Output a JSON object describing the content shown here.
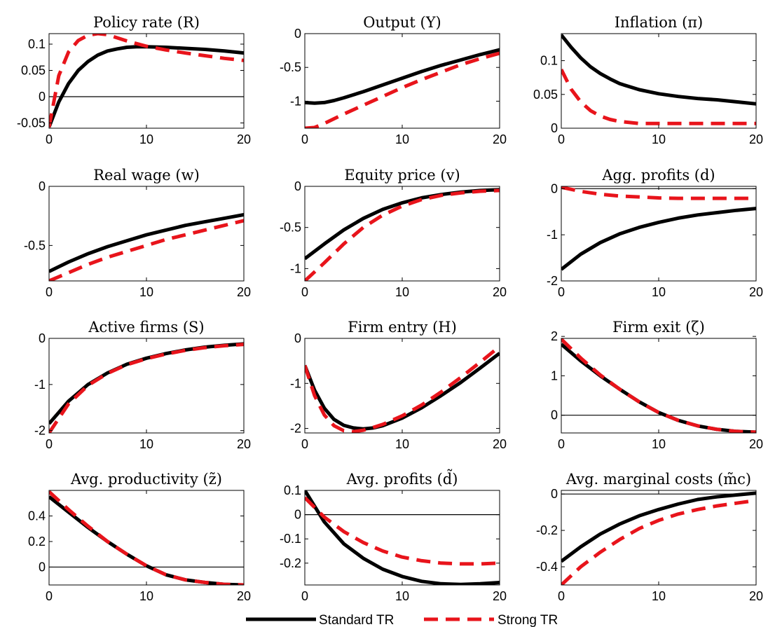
{
  "legend": {
    "standard_label": "Standard TR",
    "strong_label": "Strong TR",
    "standard_color": "#000000",
    "strong_color": "#e8141b"
  },
  "chart_data": [
    {
      "type": "line",
      "title": "Policy rate (R)",
      "xlim": [
        0,
        20
      ],
      "ylim": [
        -0.06,
        0.12
      ],
      "xticks": [
        {
          "v": 0,
          "label": "0"
        },
        {
          "v": 10,
          "label": "10"
        },
        {
          "v": 20,
          "label": "20"
        }
      ],
      "yticks": [
        {
          "v": -0.05,
          "label": "-0.05"
        },
        {
          "v": 0,
          "label": "0"
        },
        {
          "v": 0.05,
          "label": "0.05"
        },
        {
          "v": 0.1,
          "label": "0.1"
        }
      ],
      "zero_line": true,
      "x": [
        0,
        1,
        2,
        3,
        4,
        5,
        6,
        7,
        8,
        9,
        10,
        12,
        14,
        16,
        18,
        20
      ],
      "series": [
        {
          "name": "Standard TR",
          "values": [
            -0.058,
            -0.01,
            0.025,
            0.05,
            0.067,
            0.079,
            0.087,
            0.091,
            0.094,
            0.095,
            0.095,
            0.094,
            0.092,
            0.09,
            0.087,
            0.083
          ]
        },
        {
          "name": "Strong TR",
          "values": [
            -0.058,
            0.04,
            0.085,
            0.107,
            0.117,
            0.12,
            0.118,
            0.112,
            0.106,
            0.101,
            0.096,
            0.089,
            0.083,
            0.078,
            0.073,
            0.069
          ]
        }
      ]
    },
    {
      "type": "line",
      "title": "Output (Y)",
      "xlim": [
        0,
        20
      ],
      "ylim": [
        -1.4,
        0
      ],
      "xticks": [
        {
          "v": 0,
          "label": "0"
        },
        {
          "v": 10,
          "label": "10"
        },
        {
          "v": 20,
          "label": "20"
        }
      ],
      "yticks": [
        {
          "v": -1,
          "label": "-1"
        },
        {
          "v": -0.5,
          "label": "-0.5"
        },
        {
          "v": 0,
          "label": "0"
        }
      ],
      "zero_line": false,
      "x": [
        0,
        1,
        2,
        3,
        4,
        6,
        8,
        10,
        12,
        14,
        16,
        18,
        20
      ],
      "series": [
        {
          "name": "Standard TR",
          "values": [
            -1.02,
            -1.03,
            -1.02,
            -0.99,
            -0.95,
            -0.86,
            -0.76,
            -0.66,
            -0.56,
            -0.47,
            -0.39,
            -0.31,
            -0.24
          ]
        },
        {
          "name": "Strong TR",
          "values": [
            -1.4,
            -1.39,
            -1.33,
            -1.26,
            -1.19,
            -1.06,
            -0.93,
            -0.8,
            -0.68,
            -0.57,
            -0.46,
            -0.37,
            -0.29
          ]
        }
      ]
    },
    {
      "type": "line",
      "title": "Inflation (π)",
      "xlim": [
        0,
        20
      ],
      "ylim": [
        0,
        0.14
      ],
      "xticks": [
        {
          "v": 0,
          "label": "0"
        },
        {
          "v": 10,
          "label": "10"
        },
        {
          "v": 20,
          "label": "20"
        }
      ],
      "yticks": [
        {
          "v": 0,
          "label": "0"
        },
        {
          "v": 0.05,
          "label": "0.05"
        },
        {
          "v": 0.1,
          "label": "0.1"
        }
      ],
      "zero_line": false,
      "x": [
        0,
        1,
        2,
        3,
        4,
        5,
        6,
        8,
        10,
        12,
        14,
        16,
        18,
        20
      ],
      "series": [
        {
          "name": "Standard TR",
          "values": [
            0.138,
            0.12,
            0.104,
            0.091,
            0.081,
            0.073,
            0.066,
            0.057,
            0.051,
            0.047,
            0.044,
            0.042,
            0.039,
            0.036
          ]
        },
        {
          "name": "Strong TR",
          "values": [
            0.087,
            0.058,
            0.039,
            0.026,
            0.018,
            0.013,
            0.01,
            0.007,
            0.007,
            0.007,
            0.007,
            0.007,
            0.007,
            0.007
          ]
        }
      ]
    },
    {
      "type": "line",
      "title": "Real wage (w)",
      "xlim": [
        0,
        20
      ],
      "ylim": [
        -0.8,
        0
      ],
      "xticks": [
        {
          "v": 0,
          "label": "0"
        },
        {
          "v": 10,
          "label": "10"
        },
        {
          "v": 20,
          "label": "20"
        }
      ],
      "yticks": [
        {
          "v": -0.5,
          "label": "-0.5"
        },
        {
          "v": 0,
          "label": "0"
        }
      ],
      "zero_line": false,
      "x": [
        0,
        2,
        4,
        6,
        8,
        10,
        12,
        14,
        16,
        18,
        20
      ],
      "series": [
        {
          "name": "Standard TR",
          "values": [
            -0.72,
            -0.64,
            -0.57,
            -0.51,
            -0.46,
            -0.41,
            -0.37,
            -0.33,
            -0.3,
            -0.27,
            -0.24
          ]
        },
        {
          "name": "Strong TR",
          "values": [
            -0.8,
            -0.73,
            -0.66,
            -0.6,
            -0.55,
            -0.5,
            -0.45,
            -0.41,
            -0.37,
            -0.33,
            -0.29
          ]
        }
      ]
    },
    {
      "type": "line",
      "title": "Equity price (v)",
      "xlim": [
        0,
        20
      ],
      "ylim": [
        -1.15,
        0
      ],
      "xticks": [
        {
          "v": 0,
          "label": "0"
        },
        {
          "v": 10,
          "label": "10"
        },
        {
          "v": 20,
          "label": "20"
        }
      ],
      "yticks": [
        {
          "v": -1,
          "label": "-1"
        },
        {
          "v": -0.5,
          "label": "-0.5"
        },
        {
          "v": 0,
          "label": "0"
        }
      ],
      "zero_line": false,
      "x": [
        0,
        2,
        4,
        6,
        8,
        10,
        12,
        14,
        16,
        18,
        20
      ],
      "series": [
        {
          "name": "Standard TR",
          "values": [
            -0.88,
            -0.7,
            -0.53,
            -0.39,
            -0.28,
            -0.2,
            -0.14,
            -0.1,
            -0.07,
            -0.05,
            -0.04
          ]
        },
        {
          "name": "Strong TR",
          "values": [
            -1.15,
            -0.93,
            -0.7,
            -0.5,
            -0.35,
            -0.24,
            -0.16,
            -0.11,
            -0.08,
            -0.06,
            -0.05
          ]
        }
      ]
    },
    {
      "type": "line",
      "title": "Agg. profits (d)",
      "xlim": [
        0,
        20
      ],
      "ylim": [
        -2,
        0.05
      ],
      "xticks": [
        {
          "v": 0,
          "label": "0"
        },
        {
          "v": 10,
          "label": "10"
        },
        {
          "v": 20,
          "label": "20"
        }
      ],
      "yticks": [
        {
          "v": -2,
          "label": "-2"
        },
        {
          "v": -1,
          "label": "-1"
        },
        {
          "v": 0,
          "label": "0"
        }
      ],
      "zero_line": true,
      "x": [
        0,
        2,
        4,
        6,
        8,
        10,
        12,
        14,
        16,
        18,
        20
      ],
      "series": [
        {
          "name": "Standard TR",
          "values": [
            -1.75,
            -1.42,
            -1.17,
            -0.98,
            -0.84,
            -0.73,
            -0.64,
            -0.57,
            -0.52,
            -0.47,
            -0.43
          ]
        },
        {
          "name": "Strong TR",
          "values": [
            0.03,
            -0.06,
            -0.12,
            -0.16,
            -0.18,
            -0.2,
            -0.21,
            -0.21,
            -0.21,
            -0.21,
            -0.21
          ]
        }
      ]
    },
    {
      "type": "line",
      "title": "Active firms (S)",
      "xlim": [
        0,
        20
      ],
      "ylim": [
        -2.05,
        0
      ],
      "xticks": [
        {
          "v": 0,
          "label": "0"
        },
        {
          "v": 10,
          "label": "10"
        },
        {
          "v": 20,
          "label": "20"
        }
      ],
      "yticks": [
        {
          "v": -2,
          "label": "-2"
        },
        {
          "v": -1,
          "label": "-1"
        },
        {
          "v": 0,
          "label": "0"
        }
      ],
      "zero_line": false,
      "x": [
        0,
        2,
        4,
        6,
        8,
        10,
        12,
        14,
        16,
        18,
        20
      ],
      "series": [
        {
          "name": "Standard TR",
          "values": [
            -1.85,
            -1.36,
            -1,
            -0.75,
            -0.56,
            -0.43,
            -0.33,
            -0.25,
            -0.19,
            -0.15,
            -0.12
          ]
        },
        {
          "name": "Strong TR",
          "values": [
            -2.05,
            -1.42,
            -1.02,
            -0.76,
            -0.57,
            -0.44,
            -0.34,
            -0.26,
            -0.2,
            -0.16,
            -0.13
          ]
        }
      ]
    },
    {
      "type": "line",
      "title": "Firm entry (H)",
      "xlim": [
        0,
        20
      ],
      "ylim": [
        -2.1,
        0
      ],
      "xticks": [
        {
          "v": 0,
          "label": "0"
        },
        {
          "v": 10,
          "label": "10"
        },
        {
          "v": 20,
          "label": "20"
        }
      ],
      "yticks": [
        {
          "v": -2,
          "label": "-2"
        },
        {
          "v": -1,
          "label": "-1"
        },
        {
          "v": 0,
          "label": "0"
        }
      ],
      "zero_line": false,
      "x": [
        0,
        1,
        2,
        3,
        4,
        5,
        6,
        7,
        8,
        10,
        12,
        14,
        16,
        18,
        20
      ],
      "series": [
        {
          "name": "Standard TR",
          "values": [
            -0.6,
            -1.15,
            -1.55,
            -1.8,
            -1.93,
            -1.99,
            -2.01,
            -1.99,
            -1.94,
            -1.77,
            -1.54,
            -1.27,
            -0.98,
            -0.66,
            -0.33
          ]
        },
        {
          "name": "Strong TR",
          "values": [
            -0.6,
            -1.27,
            -1.7,
            -1.94,
            -2.05,
            -2.07,
            -2.04,
            -1.98,
            -1.91,
            -1.72,
            -1.48,
            -1.19,
            -0.87,
            -0.53,
            -0.18
          ]
        }
      ]
    },
    {
      "type": "line",
      "title": "Firm exit (ζ)",
      "xlim": [
        0,
        20
      ],
      "ylim": [
        -0.45,
        1.95
      ],
      "xticks": [
        {
          "v": 0,
          "label": "0"
        },
        {
          "v": 10,
          "label": "10"
        },
        {
          "v": 20,
          "label": "20"
        }
      ],
      "yticks": [
        {
          "v": 0,
          "label": "0"
        },
        {
          "v": 1,
          "label": "1"
        },
        {
          "v": 2,
          "label": "2"
        }
      ],
      "zero_line": true,
      "x": [
        0,
        2,
        4,
        6,
        8,
        10,
        12,
        14,
        16,
        18,
        20
      ],
      "series": [
        {
          "name": "Standard TR",
          "values": [
            1.8,
            1.38,
            1.0,
            0.66,
            0.34,
            0.07,
            -0.13,
            -0.27,
            -0.36,
            -0.41,
            -0.43
          ]
        },
        {
          "name": "Strong TR",
          "values": [
            1.93,
            1.45,
            1.02,
            0.66,
            0.34,
            0.07,
            -0.13,
            -0.27,
            -0.36,
            -0.41,
            -0.43
          ]
        }
      ]
    },
    {
      "type": "line",
      "title": "Avg. productivity (z̃)",
      "xlim": [
        0,
        20
      ],
      "ylim": [
        -0.14,
        0.6
      ],
      "xticks": [
        {
          "v": 0,
          "label": "0"
        },
        {
          "v": 10,
          "label": "10"
        },
        {
          "v": 20,
          "label": "20"
        }
      ],
      "yticks": [
        {
          "v": 0,
          "label": "0"
        },
        {
          "v": 0.2,
          "label": "0.2"
        },
        {
          "v": 0.4,
          "label": "0.4"
        }
      ],
      "zero_line": true,
      "x": [
        0,
        2,
        4,
        6,
        8,
        10,
        12,
        14,
        16,
        18,
        20
      ],
      "series": [
        {
          "name": "Standard TR",
          "values": [
            0.55,
            0.43,
            0.31,
            0.2,
            0.1,
            0.01,
            -0.06,
            -0.1,
            -0.12,
            -0.135,
            -0.14
          ]
        },
        {
          "name": "Strong TR",
          "values": [
            0.59,
            0.45,
            0.32,
            0.2,
            0.1,
            0.01,
            -0.06,
            -0.1,
            -0.12,
            -0.135,
            -0.14
          ]
        }
      ]
    },
    {
      "type": "line",
      "title": "Avg. profits (d̃)",
      "xlim": [
        0,
        20
      ],
      "ylim": [
        -0.29,
        0.1
      ],
      "xticks": [
        {
          "v": 0,
          "label": "0"
        },
        {
          "v": 10,
          "label": "10"
        },
        {
          "v": 20,
          "label": "20"
        }
      ],
      "yticks": [
        {
          "v": -0.2,
          "label": "-0.2"
        },
        {
          "v": -0.1,
          "label": "-0.1"
        },
        {
          "v": 0,
          "label": "0"
        },
        {
          "v": 0.1,
          "label": "0.1"
        }
      ],
      "zero_line": true,
      "x": [
        0,
        2,
        4,
        6,
        8,
        10,
        12,
        14,
        16,
        18,
        20
      ],
      "series": [
        {
          "name": "Standard TR",
          "values": [
            0.1,
            -0.03,
            -0.12,
            -0.18,
            -0.225,
            -0.255,
            -0.275,
            -0.285,
            -0.288,
            -0.285,
            -0.28
          ]
        },
        {
          "name": "Strong TR",
          "values": [
            0.07,
            -0.01,
            -0.07,
            -0.115,
            -0.15,
            -0.175,
            -0.19,
            -0.2,
            -0.203,
            -0.203,
            -0.2
          ]
        }
      ]
    },
    {
      "type": "line",
      "title": "Avg. marginal costs (m̃c)",
      "xlim": [
        0,
        20
      ],
      "ylim": [
        -0.5,
        0.02
      ],
      "xticks": [
        {
          "v": 0,
          "label": "0"
        },
        {
          "v": 10,
          "label": "10"
        },
        {
          "v": 20,
          "label": "20"
        }
      ],
      "yticks": [
        {
          "v": -0.4,
          "label": "-0.4"
        },
        {
          "v": -0.2,
          "label": "-0.2"
        },
        {
          "v": 0,
          "label": "0"
        }
      ],
      "zero_line": true,
      "x": [
        0,
        2,
        4,
        6,
        8,
        10,
        12,
        14,
        16,
        18,
        20
      ],
      "series": [
        {
          "name": "Standard TR",
          "values": [
            -0.37,
            -0.29,
            -0.22,
            -0.165,
            -0.12,
            -0.085,
            -0.055,
            -0.03,
            -0.015,
            -0.005,
            0.005
          ]
        },
        {
          "name": "Strong TR",
          "values": [
            -0.5,
            -0.4,
            -0.32,
            -0.25,
            -0.19,
            -0.145,
            -0.11,
            -0.085,
            -0.065,
            -0.05,
            -0.035
          ]
        }
      ]
    }
  ]
}
